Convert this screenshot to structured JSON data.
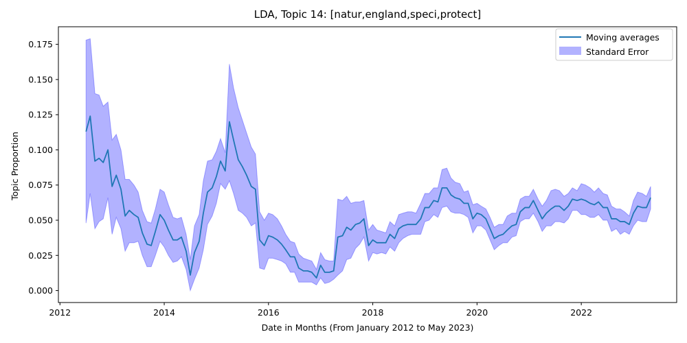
{
  "chart_data": {
    "type": "line",
    "title": "LDA, Topic 14: [natur,england,speci,protect]",
    "xlabel": "Date in Months (From January 2012 to May 2023)",
    "ylabel": "Topic Proportion",
    "xlim": [
      2011.97,
      2023.83
    ],
    "ylim": [
      -0.0085,
      0.1875
    ],
    "xticks": [
      2012,
      2014,
      2016,
      2018,
      2020,
      2022
    ],
    "yticks": [
      0.0,
      0.025,
      0.05,
      0.075,
      0.1,
      0.125,
      0.15,
      0.175
    ],
    "ytick_labels": [
      "0.000",
      "0.025",
      "0.050",
      "0.075",
      "0.100",
      "0.125",
      "0.150",
      "0.175"
    ],
    "legend": {
      "position": "top-right",
      "entries": [
        {
          "name": "Moving averages",
          "kind": "line",
          "color": "#1f77b4"
        },
        {
          "name": "Standard Error",
          "kind": "band",
          "color": "#0000ff"
        }
      ]
    },
    "line_color": "#1f77b4",
    "band_color": "#0000ff",
    "band_alpha": 0.3,
    "series": [
      {
        "name": "Moving averages",
        "x": [
          2012.5,
          2012.58,
          2012.67,
          2012.75,
          2012.83,
          2012.92,
          2013.0,
          2013.08,
          2013.17,
          2013.25,
          2013.33,
          2013.42,
          2013.5,
          2013.58,
          2013.67,
          2013.75,
          2013.83,
          2013.92,
          2014.0,
          2014.08,
          2014.17,
          2014.25,
          2014.33,
          2014.42,
          2014.5,
          2014.58,
          2014.67,
          2014.75,
          2014.83,
          2014.92,
          2015.0,
          2015.08,
          2015.17,
          2015.25,
          2015.33,
          2015.42,
          2015.5,
          2015.58,
          2015.67,
          2015.75,
          2015.83,
          2015.92,
          2016.0,
          2016.08,
          2016.17,
          2016.25,
          2016.33,
          2016.42,
          2016.5,
          2016.58,
          2016.67,
          2016.75,
          2016.83,
          2016.92,
          2017.0,
          2017.08,
          2017.17,
          2017.25,
          2017.33,
          2017.42,
          2017.5,
          2017.58,
          2017.67,
          2017.75,
          2017.83,
          2017.92,
          2018.0,
          2018.08,
          2018.17,
          2018.25,
          2018.33,
          2018.42,
          2018.5,
          2018.58,
          2018.67,
          2018.75,
          2018.83,
          2018.92,
          2019.0,
          2019.08,
          2019.17,
          2019.25,
          2019.33,
          2019.42,
          2019.5,
          2019.58,
          2019.67,
          2019.75,
          2019.83,
          2019.92,
          2020.0,
          2020.08,
          2020.17,
          2020.25,
          2020.33,
          2020.42,
          2020.5,
          2020.58,
          2020.67,
          2020.75,
          2020.83,
          2020.92,
          2021.0,
          2021.08,
          2021.17,
          2021.25,
          2021.33,
          2021.42,
          2021.5,
          2021.58,
          2021.67,
          2021.75,
          2021.83,
          2021.92,
          2022.0,
          2022.08,
          2022.17,
          2022.25,
          2022.33,
          2022.42,
          2022.5,
          2022.58,
          2022.67,
          2022.75,
          2022.83,
          2022.92,
          2023.0,
          2023.08,
          2023.17,
          2023.25,
          2023.33
        ],
        "y": [
          0.113,
          0.124,
          0.092,
          0.094,
          0.091,
          0.1,
          0.074,
          0.082,
          0.072,
          0.053,
          0.057,
          0.054,
          0.052,
          0.041,
          0.033,
          0.032,
          0.042,
          0.054,
          0.05,
          0.043,
          0.036,
          0.036,
          0.038,
          0.028,
          0.011,
          0.027,
          0.035,
          0.055,
          0.07,
          0.073,
          0.081,
          0.092,
          0.085,
          0.12,
          0.107,
          0.093,
          0.088,
          0.082,
          0.074,
          0.072,
          0.036,
          0.032,
          0.039,
          0.038,
          0.036,
          0.033,
          0.029,
          0.024,
          0.024,
          0.016,
          0.014,
          0.014,
          0.013,
          0.009,
          0.018,
          0.013,
          0.013,
          0.014,
          0.038,
          0.039,
          0.045,
          0.043,
          0.047,
          0.048,
          0.051,
          0.032,
          0.036,
          0.034,
          0.034,
          0.034,
          0.04,
          0.037,
          0.044,
          0.046,
          0.047,
          0.047,
          0.047,
          0.051,
          0.059,
          0.059,
          0.064,
          0.063,
          0.073,
          0.073,
          0.068,
          0.066,
          0.065,
          0.062,
          0.062,
          0.051,
          0.055,
          0.054,
          0.051,
          0.044,
          0.037,
          0.039,
          0.04,
          0.043,
          0.046,
          0.047,
          0.056,
          0.059,
          0.059,
          0.064,
          0.057,
          0.051,
          0.055,
          0.058,
          0.06,
          0.06,
          0.057,
          0.06,
          0.065,
          0.064,
          0.065,
          0.064,
          0.062,
          0.061,
          0.063,
          0.059,
          0.059,
          0.051,
          0.051,
          0.049,
          0.049,
          0.047,
          0.055,
          0.06,
          0.059,
          0.059,
          0.066
        ]
      }
    ],
    "band": {
      "name": "Standard Error",
      "lower": [
        0.048,
        0.069,
        0.044,
        0.049,
        0.051,
        0.066,
        0.04,
        0.052,
        0.044,
        0.028,
        0.034,
        0.034,
        0.035,
        0.025,
        0.017,
        0.017,
        0.025,
        0.035,
        0.031,
        0.025,
        0.02,
        0.021,
        0.024,
        0.015,
        0.0,
        0.008,
        0.016,
        0.029,
        0.047,
        0.053,
        0.062,
        0.076,
        0.072,
        0.078,
        0.069,
        0.057,
        0.055,
        0.052,
        0.046,
        0.048,
        0.016,
        0.015,
        0.023,
        0.023,
        0.022,
        0.021,
        0.019,
        0.013,
        0.013,
        0.006,
        0.006,
        0.006,
        0.006,
        0.004,
        0.009,
        0.005,
        0.006,
        0.008,
        0.011,
        0.014,
        0.022,
        0.023,
        0.03,
        0.033,
        0.038,
        0.021,
        0.027,
        0.026,
        0.027,
        0.026,
        0.031,
        0.028,
        0.034,
        0.037,
        0.039,
        0.04,
        0.04,
        0.04,
        0.049,
        0.05,
        0.054,
        0.052,
        0.059,
        0.06,
        0.056,
        0.055,
        0.055,
        0.054,
        0.052,
        0.041,
        0.046,
        0.046,
        0.043,
        0.036,
        0.029,
        0.032,
        0.034,
        0.034,
        0.038,
        0.039,
        0.049,
        0.051,
        0.051,
        0.055,
        0.049,
        0.042,
        0.046,
        0.046,
        0.049,
        0.049,
        0.048,
        0.051,
        0.057,
        0.057,
        0.054,
        0.054,
        0.052,
        0.052,
        0.054,
        0.05,
        0.05,
        0.042,
        0.044,
        0.04,
        0.042,
        0.04,
        0.046,
        0.05,
        0.049,
        0.049,
        0.058
      ],
      "upper": [
        0.178,
        0.179,
        0.14,
        0.139,
        0.131,
        0.134,
        0.107,
        0.111,
        0.1,
        0.079,
        0.079,
        0.075,
        0.07,
        0.057,
        0.049,
        0.048,
        0.058,
        0.072,
        0.07,
        0.061,
        0.052,
        0.051,
        0.052,
        0.04,
        0.022,
        0.046,
        0.054,
        0.078,
        0.092,
        0.093,
        0.099,
        0.108,
        0.098,
        0.161,
        0.144,
        0.13,
        0.121,
        0.112,
        0.102,
        0.097,
        0.056,
        0.05,
        0.055,
        0.054,
        0.051,
        0.046,
        0.04,
        0.035,
        0.034,
        0.026,
        0.023,
        0.022,
        0.021,
        0.015,
        0.027,
        0.022,
        0.021,
        0.021,
        0.065,
        0.064,
        0.067,
        0.062,
        0.063,
        0.063,
        0.064,
        0.043,
        0.047,
        0.043,
        0.042,
        0.041,
        0.049,
        0.046,
        0.054,
        0.055,
        0.056,
        0.056,
        0.055,
        0.062,
        0.069,
        0.069,
        0.073,
        0.073,
        0.086,
        0.087,
        0.08,
        0.077,
        0.076,
        0.07,
        0.071,
        0.061,
        0.062,
        0.06,
        0.058,
        0.052,
        0.045,
        0.047,
        0.047,
        0.053,
        0.055,
        0.055,
        0.065,
        0.067,
        0.067,
        0.072,
        0.065,
        0.06,
        0.064,
        0.071,
        0.072,
        0.071,
        0.067,
        0.069,
        0.073,
        0.071,
        0.076,
        0.075,
        0.073,
        0.07,
        0.073,
        0.069,
        0.068,
        0.06,
        0.058,
        0.058,
        0.056,
        0.053,
        0.064,
        0.07,
        0.069,
        0.067,
        0.074
      ]
    }
  }
}
